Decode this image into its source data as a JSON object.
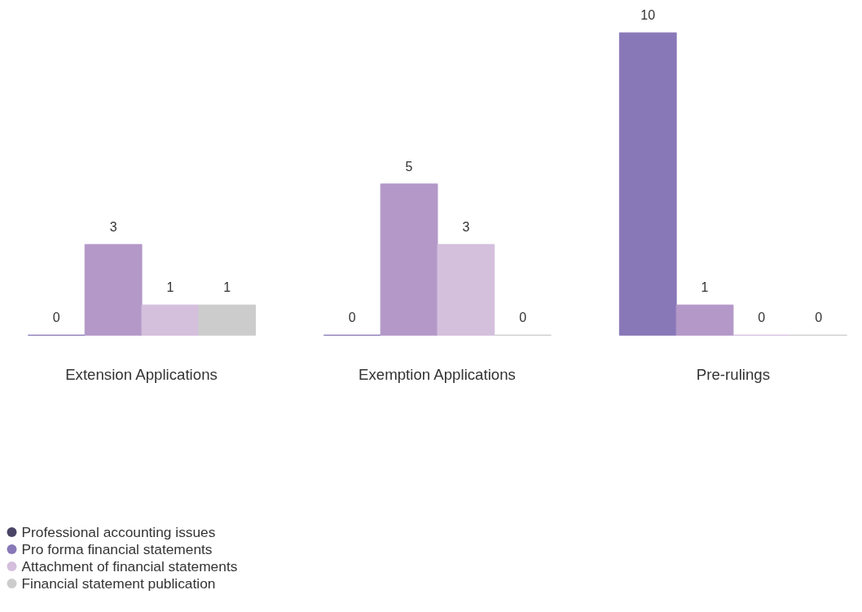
{
  "chart_data": {
    "type": "bar",
    "categories": [
      "Extension Applications",
      "Exemption Applications",
      "Pre-rulings"
    ],
    "series": [
      {
        "name": "Professional accounting issues",
        "color": "#4a4466",
        "values": [
          null,
          null,
          null
        ]
      },
      {
        "name": "Pro forma financial statements",
        "color": "#8878b8",
        "values": [
          0,
          0,
          10
        ]
      },
      {
        "color": "#b398c8",
        "values": [
          3,
          5,
          1
        ]
      },
      {
        "name": "Attachment of financial statements",
        "color": "#d4bfdd",
        "values": [
          1,
          3,
          0
        ]
      },
      {
        "name": "Financial statement publication",
        "color": "#cccccc",
        "values": [
          1,
          0,
          0
        ]
      }
    ],
    "data_labels": true,
    "legend": "bottom left"
  }
}
